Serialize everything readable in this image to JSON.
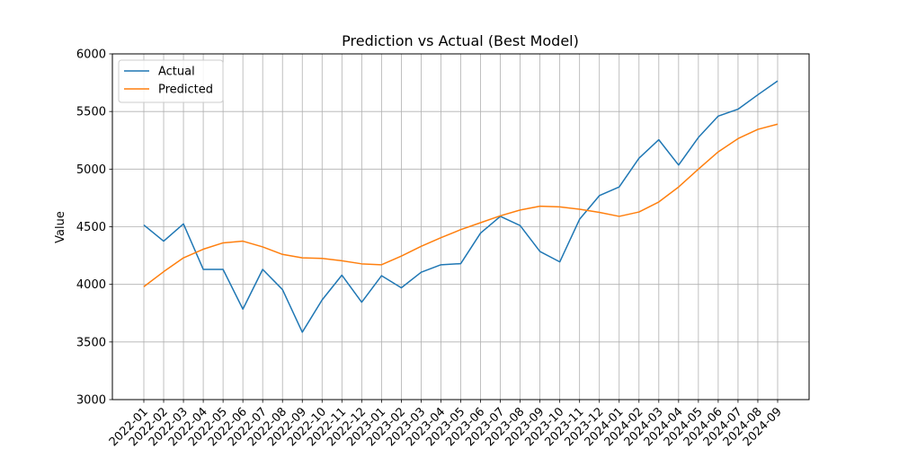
{
  "chart_data": {
    "type": "line",
    "title": "Prediction vs Actual (Best Model)",
    "xlabel": "",
    "ylabel": "Value",
    "ylim": [
      3000,
      6000
    ],
    "yticks": [
      3000,
      3500,
      4000,
      4500,
      5000,
      5500,
      6000
    ],
    "grid": true,
    "legend_position": "top-left",
    "categories": [
      "2022-01",
      "2022-02",
      "2022-03",
      "2022-04",
      "2022-05",
      "2022-06",
      "2022-07",
      "2022-08",
      "2022-09",
      "2022-10",
      "2022-11",
      "2022-12",
      "2023-01",
      "2023-02",
      "2023-03",
      "2023-04",
      "2023-05",
      "2023-06",
      "2023-07",
      "2023-08",
      "2023-09",
      "2023-10",
      "2023-11",
      "2023-12",
      "2024-01",
      "2024-02",
      "2024-03",
      "2024-04",
      "2024-05",
      "2024-06",
      "2024-07",
      "2024-08",
      "2024-09"
    ],
    "series": [
      {
        "name": "Actual",
        "color": "#1f77b4",
        "values": [
          4515,
          4375,
          4525,
          4130,
          4130,
          3785,
          4130,
          3955,
          3585,
          3865,
          4080,
          3845,
          4075,
          3970,
          4105,
          4170,
          4180,
          4445,
          4590,
          4510,
          4285,
          4195,
          4565,
          4770,
          4845,
          5095,
          5255,
          5035,
          5275,
          5460,
          5520,
          5645,
          5765
        ]
      },
      {
        "name": "Predicted",
        "color": "#ff7f0e",
        "values": [
          3980,
          4110,
          4230,
          4305,
          4360,
          4375,
          4325,
          4260,
          4230,
          4225,
          4205,
          4178,
          4170,
          4245,
          4330,
          4405,
          4475,
          4535,
          4595,
          4645,
          4678,
          4672,
          4652,
          4625,
          4590,
          4628,
          4715,
          4845,
          5000,
          5150,
          5265,
          5345,
          5390
        ]
      }
    ]
  }
}
